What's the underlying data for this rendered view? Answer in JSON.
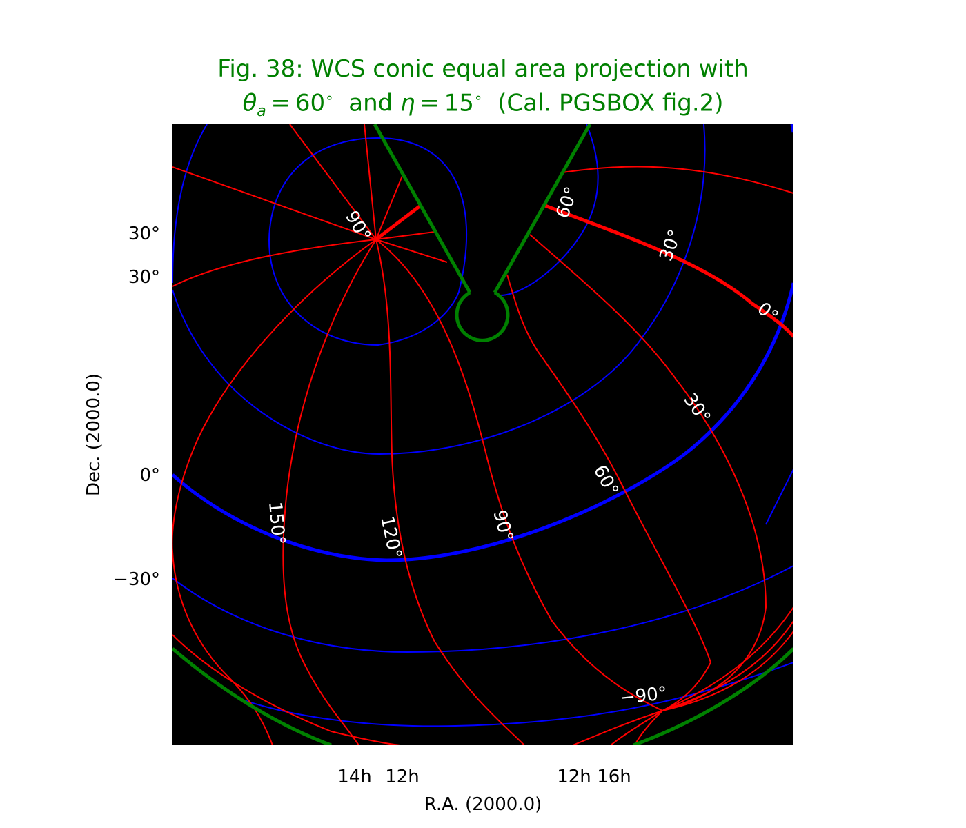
{
  "chart_data": {
    "type": "line",
    "title_line1": "Fig. 38: WCS conic equal area projection with",
    "title_line2": "θa = 60° and η = 15° (Cal. PGSBOX fig.2)",
    "xlabel": "R.A. (2000.0)",
    "ylabel": "Dec. (2000.0)",
    "projection": "COE (conic equal area)",
    "background": "black",
    "x_ticks": [
      "14h",
      "12h",
      "12h",
      "16h"
    ],
    "y_ticks": [
      "30°",
      "30°",
      "0°",
      "−30°"
    ],
    "inline_labels": [
      "90°",
      "60°",
      "30°",
      "0°",
      "30°",
      "60°",
      "90°",
      "120°",
      "150°",
      "−90°"
    ],
    "series": [
      {
        "kind": "meridians",
        "color": "#ff0000",
        "count": 13
      },
      {
        "kind": "parallels",
        "color": "#0000ff",
        "count": 7
      },
      {
        "kind": "equator",
        "color": "#0000ff",
        "emphasis": "thick"
      },
      {
        "kind": "prime meridian",
        "color": "#ff0000",
        "emphasis": "thick"
      },
      {
        "kind": "boundary",
        "color": "#008000",
        "emphasis": "thick"
      }
    ],
    "colors": {
      "meridian": "#ff0000",
      "parallel": "#0000ff",
      "boundary": "#008000",
      "title": "#008000"
    }
  }
}
